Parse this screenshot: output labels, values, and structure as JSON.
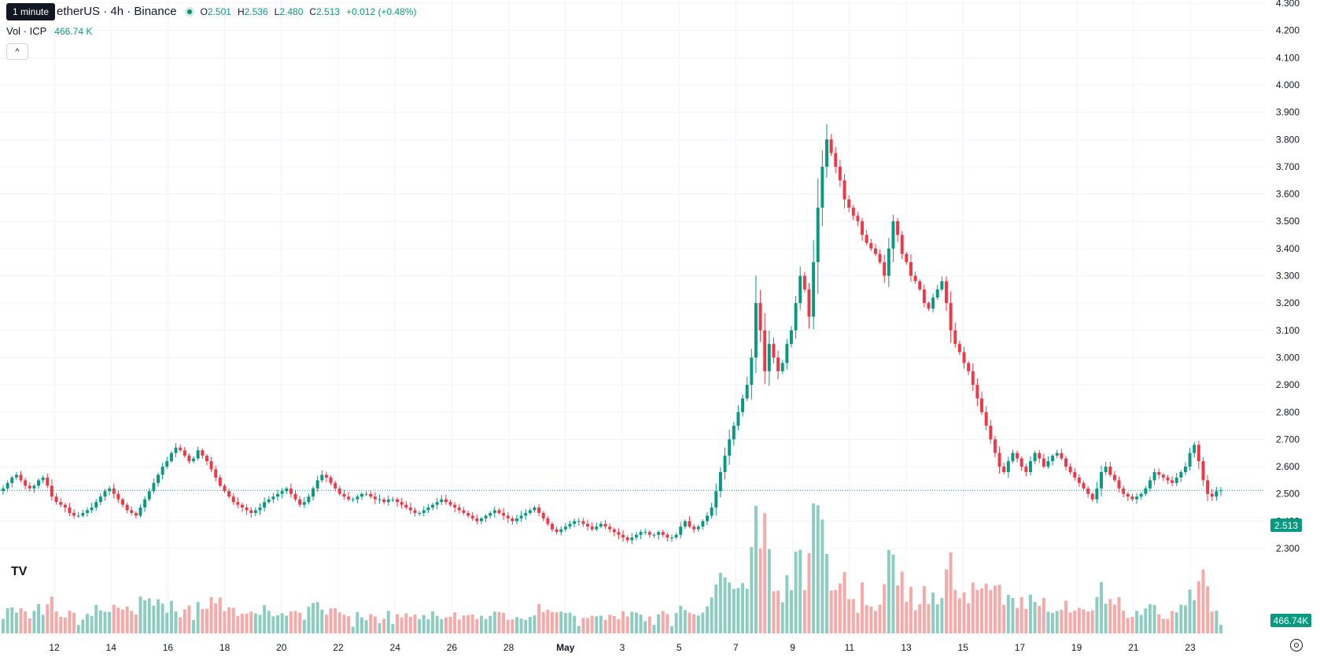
{
  "legend": {
    "tooltip": "1 minute",
    "symbol": "etherUS · 4h · Binance",
    "open_label": "O",
    "open": "2.501",
    "high_label": "H",
    "high": "2.536",
    "low_label": "L",
    "low": "2.480",
    "close_label": "C",
    "close": "2.513",
    "change": "+0.012 (+0.48%)",
    "vol_label": "Vol · ICP",
    "vol_value": "466.74 K"
  },
  "price_badge": "2.513",
  "volume_badge": "466.74K",
  "colors": {
    "up": "#089981",
    "down": "#f23645",
    "vol_up": "#8cccc1",
    "vol_down": "#f7a9a7",
    "grid": "#f0f3fa"
  },
  "chart_data": {
    "type": "candlestick",
    "interval": "4h",
    "y_ticks": [
      "4.300",
      "4.200",
      "4.100",
      "4.000",
      "3.900",
      "3.800",
      "3.700",
      "3.600",
      "3.500",
      "3.400",
      "3.300",
      "3.200",
      "3.100",
      "3.000",
      "2.900",
      "2.800",
      "2.700",
      "2.600",
      "2.500",
      "2.400",
      "2.300"
    ],
    "ylim": [
      2.3,
      4.3
    ],
    "x_ticks": [
      "12",
      "14",
      "16",
      "18",
      "20",
      "22",
      "24",
      "26",
      "28",
      "May",
      "3",
      "5",
      "7",
      "9",
      "11",
      "13",
      "15",
      "17",
      "19",
      "21",
      "23"
    ],
    "last_price": 2.513,
    "close_series": [
      2.52,
      2.54,
      2.56,
      2.57,
      2.55,
      2.53,
      2.52,
      2.53,
      2.55,
      2.56,
      2.53,
      2.49,
      2.47,
      2.46,
      2.45,
      2.43,
      2.42,
      2.42,
      2.43,
      2.44,
      2.45,
      2.47,
      2.49,
      2.51,
      2.52,
      2.5,
      2.48,
      2.46,
      2.44,
      2.43,
      2.42,
      2.45,
      2.48,
      2.51,
      2.54,
      2.57,
      2.6,
      2.62,
      2.65,
      2.67,
      2.66,
      2.64,
      2.62,
      2.63,
      2.66,
      2.64,
      2.62,
      2.59,
      2.56,
      2.53,
      2.51,
      2.49,
      2.47,
      2.46,
      2.45,
      2.44,
      2.43,
      2.44,
      2.45,
      2.47,
      2.48,
      2.49,
      2.5,
      2.51,
      2.52,
      2.5,
      2.48,
      2.46,
      2.47,
      2.49,
      2.52,
      2.55,
      2.57,
      2.56,
      2.54,
      2.52,
      2.5,
      2.49,
      2.48,
      2.48,
      2.49,
      2.5,
      2.5,
      2.49,
      2.48,
      2.48,
      2.47,
      2.48,
      2.48,
      2.47,
      2.46,
      2.45,
      2.44,
      2.43,
      2.43,
      2.44,
      2.45,
      2.46,
      2.47,
      2.48,
      2.47,
      2.46,
      2.45,
      2.44,
      2.43,
      2.42,
      2.41,
      2.4,
      2.41,
      2.42,
      2.43,
      2.44,
      2.43,
      2.42,
      2.41,
      2.4,
      2.41,
      2.42,
      2.43,
      2.44,
      2.45,
      2.43,
      2.41,
      2.39,
      2.37,
      2.36,
      2.37,
      2.38,
      2.39,
      2.4,
      2.4,
      2.39,
      2.38,
      2.37,
      2.38,
      2.39,
      2.38,
      2.37,
      2.36,
      2.35,
      2.34,
      2.33,
      2.34,
      2.35,
      2.36,
      2.36,
      2.35,
      2.35,
      2.36,
      2.35,
      2.34,
      2.34,
      2.35,
      2.38,
      2.4,
      2.38,
      2.37,
      2.38,
      2.4,
      2.42,
      2.45,
      2.51,
      2.58,
      2.64,
      2.7,
      2.75,
      2.8,
      2.85,
      2.9,
      3.0,
      3.2,
      3.1,
      2.95,
      3.05,
      3.0,
      2.95,
      2.98,
      3.05,
      3.1,
      3.2,
      3.3,
      3.25,
      3.15,
      3.35,
      3.55,
      3.7,
      3.8,
      3.75,
      3.7,
      3.65,
      3.58,
      3.55,
      3.52,
      3.5,
      3.45,
      3.42,
      3.4,
      3.38,
      3.35,
      3.3,
      3.4,
      3.5,
      3.45,
      3.38,
      3.35,
      3.3,
      3.28,
      3.25,
      3.2,
      3.18,
      3.22,
      3.25,
      3.28,
      3.2,
      3.1,
      3.05,
      3.02,
      2.98,
      2.95,
      2.9,
      2.85,
      2.8,
      2.75,
      2.7,
      2.65,
      2.6,
      2.58,
      2.62,
      2.65,
      2.63,
      2.6,
      2.58,
      2.62,
      2.65,
      2.63,
      2.6,
      2.62,
      2.64,
      2.65,
      2.63,
      2.6,
      2.58,
      2.56,
      2.54,
      2.52,
      2.5,
      2.48,
      2.52,
      2.58,
      2.6,
      2.57,
      2.55,
      2.52,
      2.5,
      2.49,
      2.48,
      2.49,
      2.5,
      2.52,
      2.55,
      2.58,
      2.57,
      2.56,
      2.55,
      2.54,
      2.56,
      2.58,
      2.6,
      2.65,
      2.68,
      2.62,
      2.55,
      2.5,
      2.49,
      2.51,
      2.513
    ],
    "volume_max_k": 4900,
    "volume_last_k": 466.74
  }
}
